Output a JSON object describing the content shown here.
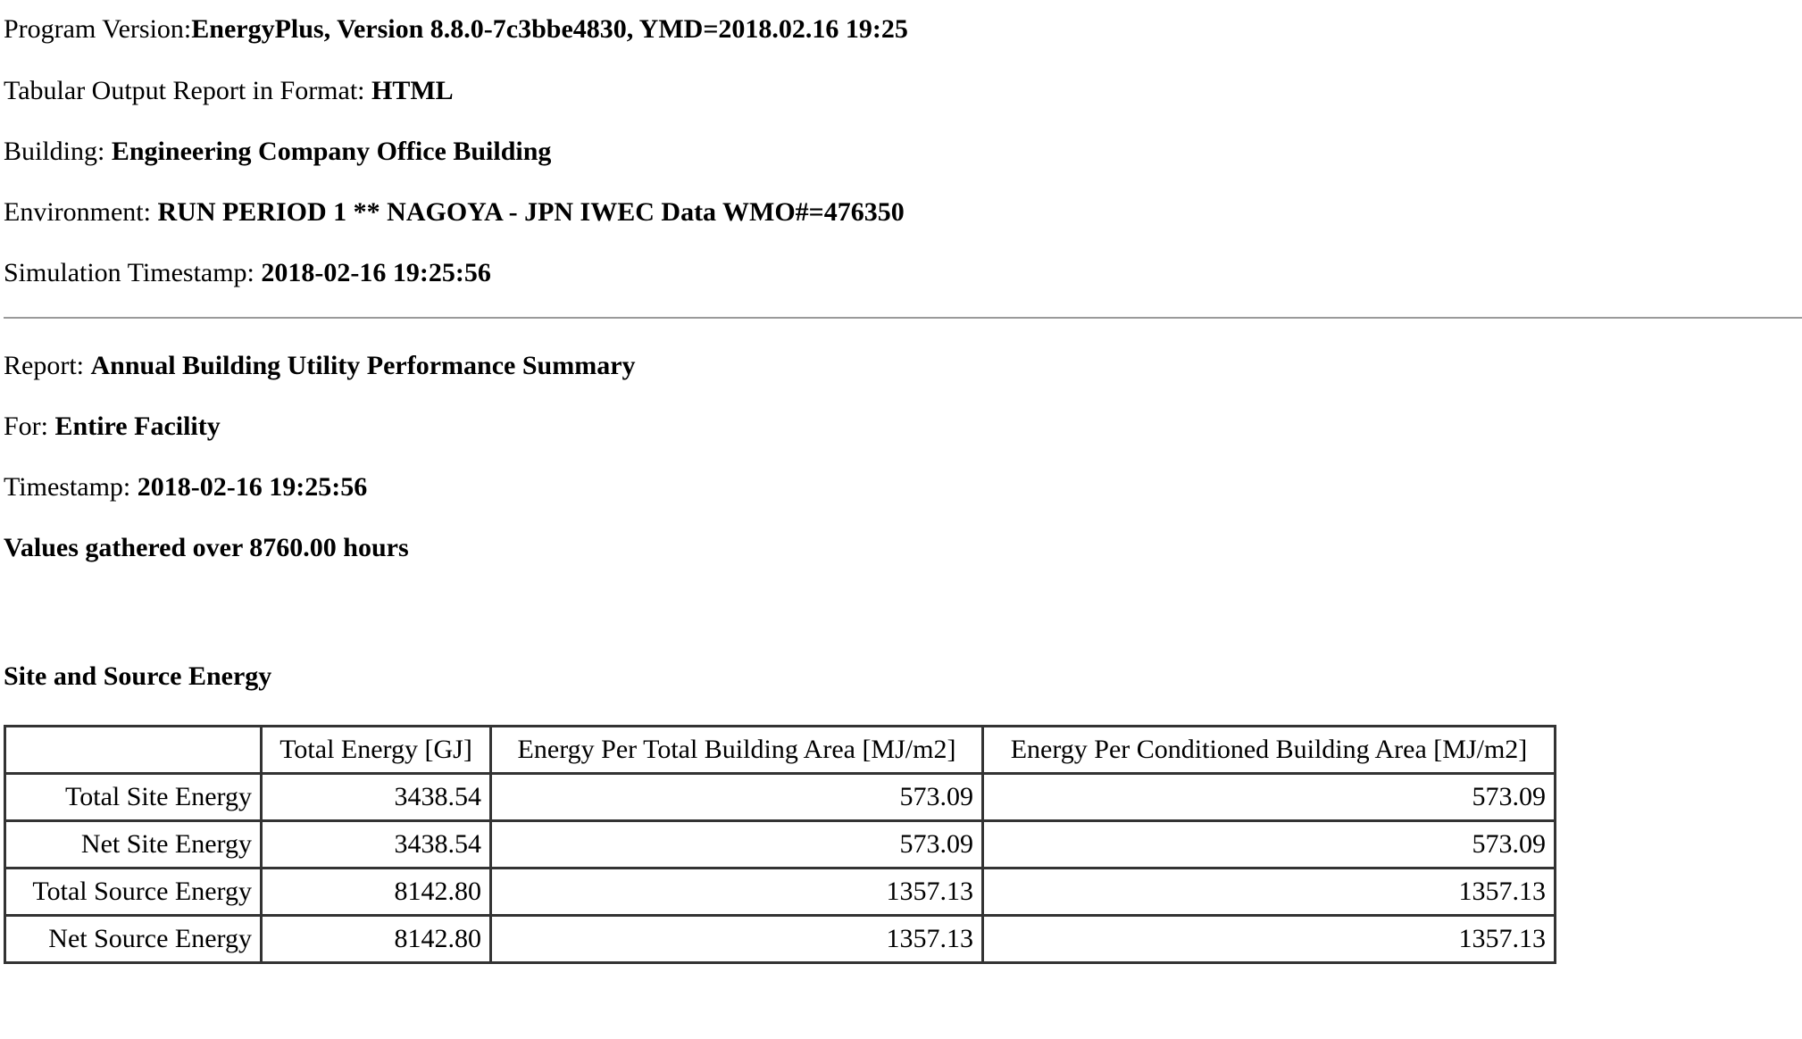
{
  "header": {
    "program_version_label": "Program Version:",
    "program_version_value": "EnergyPlus, Version 8.8.0-7c3bbe4830, YMD=2018.02.16 19:25",
    "format_label": "Tabular Output Report in Format: ",
    "format_value": "HTML",
    "building_label": "Building: ",
    "building_value": "Engineering Company Office Building",
    "environment_label": "Environment: ",
    "environment_value": "RUN PERIOD 1 ** NAGOYA - JPN IWEC Data WMO#=476350",
    "sim_timestamp_label": "Simulation Timestamp: ",
    "sim_timestamp_value": "2018-02-16 19:25:56"
  },
  "report": {
    "report_label": "Report: ",
    "report_value": "Annual Building Utility Performance Summary",
    "for_label": "For: ",
    "for_value": "Entire Facility",
    "timestamp_label": "Timestamp: ",
    "timestamp_value": "2018-02-16 19:25:56",
    "values_gathered": "Values gathered over 8760.00 hours"
  },
  "site_source": {
    "title": "Site and Source Energy",
    "columns": [
      "",
      "Total Energy [GJ]",
      "Energy Per Total Building Area [MJ/m2]",
      "Energy Per Conditioned Building Area [MJ/m2]"
    ],
    "rows": [
      [
        "Total Site Energy",
        "3438.54",
        "573.09",
        "573.09"
      ],
      [
        "Net Site Energy",
        "3438.54",
        "573.09",
        "573.09"
      ],
      [
        "Total Source Energy",
        "8142.80",
        "1357.13",
        "1357.13"
      ],
      [
        "Net Source Energy",
        "8142.80",
        "1357.13",
        "1357.13"
      ]
    ]
  }
}
